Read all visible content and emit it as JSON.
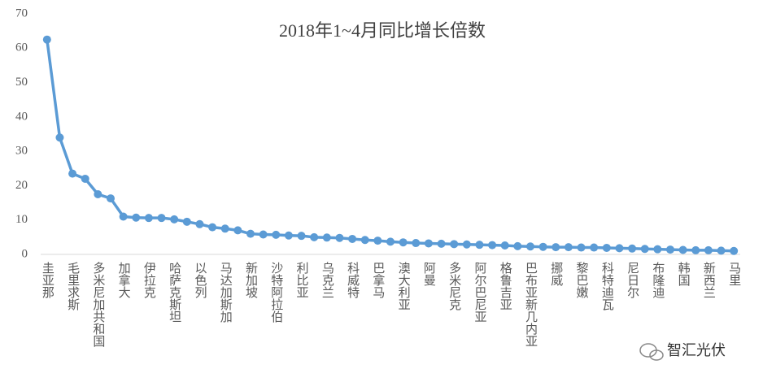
{
  "chart_data": {
    "type": "line",
    "title": "2018年1~4月同比增长倍数",
    "categories": [
      "圭亚那",
      null,
      "毛里求斯",
      null,
      "多米尼加共和国",
      null,
      "加拿大",
      null,
      "伊拉克",
      null,
      "哈萨克斯坦",
      null,
      "以色列",
      null,
      "马达加斯加",
      null,
      "新加坡",
      null,
      "沙特阿拉伯",
      null,
      "利比亚",
      null,
      "乌克兰",
      null,
      "科威特",
      null,
      "巴拿马",
      null,
      "澳大利亚",
      null,
      "阿曼",
      null,
      "多米尼克",
      null,
      "阿尔巴尼亚",
      null,
      "格鲁吉亚",
      null,
      "巴布亚新几内亚",
      null,
      "挪威",
      null,
      "黎巴嫩",
      null,
      "科特迪瓦",
      null,
      "尼日尔",
      null,
      "布隆迪",
      null,
      "韩国",
      null,
      "新西兰",
      null,
      "马里"
    ],
    "values": [
      62.5,
      34,
      23.5,
      22,
      17.5,
      16.3,
      11,
      10.7,
      10.6,
      10.6,
      10.2,
      9.5,
      8.8,
      7.9,
      7.5,
      7,
      6,
      5.8,
      5.7,
      5.5,
      5.4,
      5,
      4.9,
      4.8,
      4.5,
      4.2,
      4,
      3.7,
      3.5,
      3.3,
      3.2,
      3.1,
      3,
      2.9,
      2.8,
      2.7,
      2.6,
      2.4,
      2.3,
      2.2,
      2.1,
      2.1,
      2,
      2,
      1.9,
      1.8,
      1.7,
      1.6,
      1.5,
      1.4,
      1.3,
      1.2,
      1.2,
      1.1,
      1
    ],
    "color": "#5b9bd5",
    "ylim": [
      0,
      70
    ],
    "yticks": [
      0,
      10,
      20,
      30,
      40,
      50,
      60,
      70
    ],
    "grid": false
  },
  "watermark": "智汇光伏"
}
